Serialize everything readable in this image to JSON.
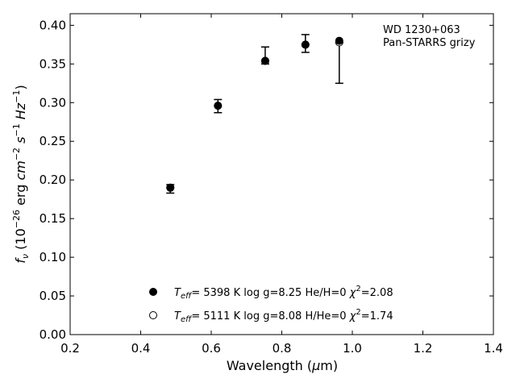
{
  "chart_data": {
    "type": "scatter",
    "title": "",
    "xlabel": "Wavelength (μm)",
    "ylabel": "fν (10⁻²⁶ erg cm⁻² s⁻¹ Hz⁻¹)",
    "xlim": [
      0.2,
      1.4
    ],
    "ylim": [
      0.0,
      0.415
    ],
    "x_ticks": [
      0.2,
      0.4,
      0.6,
      0.8,
      1.0,
      1.2,
      1.4
    ],
    "x_tick_labels": [
      "0.2",
      "0.4",
      "0.6",
      "0.8",
      "1.0",
      "1.2",
      "1.4"
    ],
    "y_ticks": [
      0.0,
      0.05,
      0.1,
      0.15,
      0.2,
      0.25,
      0.3,
      0.35,
      0.4
    ],
    "y_tick_labels": [
      "0.00",
      "0.05",
      "0.10",
      "0.15",
      "0.20",
      "0.25",
      "0.30",
      "0.35",
      "0.40"
    ],
    "grid": false,
    "legend_placement": "lower-center",
    "annotation": [
      "WD 1230+063",
      "Pan-STARRS grizy"
    ],
    "observed": {
      "x": [
        0.484,
        0.619,
        0.753,
        0.867,
        0.963
      ],
      "y": [
        0.19,
        0.296,
        0.354,
        0.376,
        0.378
      ],
      "yerr_low": [
        0.007,
        0.009,
        0.004,
        0.011,
        0.053
      ],
      "yerr_high": [
        0.004,
        0.008,
        0.018,
        0.012,
        0.0
      ]
    },
    "series": [
      {
        "name": "Teff= 5398 K log g=8.25 He/H=0 χ²=2.08",
        "marker": "filled-circle",
        "x": [
          0.484,
          0.619,
          0.753,
          0.867,
          0.963
        ],
        "y": [
          0.19,
          0.296,
          0.354,
          0.375,
          0.38
        ]
      },
      {
        "name": "Teff= 5111 K log g=8.08 H/He=0 χ²=1.74",
        "marker": "open-circle",
        "x": [
          0.484,
          0.619,
          0.753,
          0.867,
          0.963
        ],
        "y": [
          0.19,
          0.296,
          0.354,
          0.375,
          0.378
        ]
      }
    ],
    "legend": [
      {
        "marker": "filled-circle",
        "teff_value": "5398 K",
        "logg": "log g=8.25",
        "comp": "He/H=0",
        "chi_value": "=2.08"
      },
      {
        "marker": "open-circle",
        "teff_value": "5111 K",
        "logg": "log g=8.08",
        "comp": "H/He=0",
        "chi_value": "=1.74"
      }
    ]
  }
}
